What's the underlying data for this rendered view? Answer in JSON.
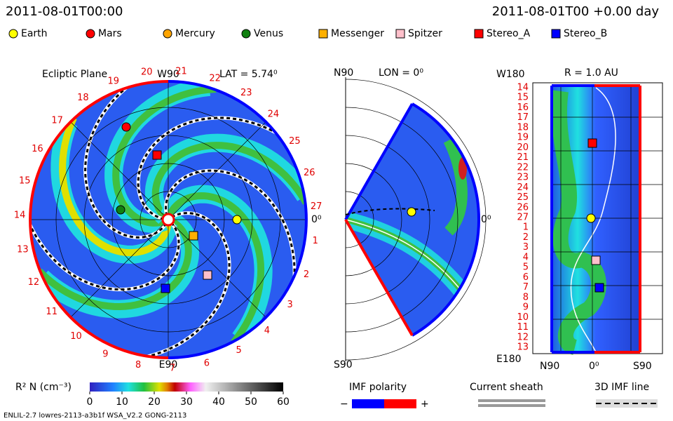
{
  "header": {
    "left": "2011-08-01T00:00",
    "right": "2011-08-01T00 +0.00 day"
  },
  "legend": [
    {
      "name": "Earth",
      "color": "#ffff00",
      "marker": "circle"
    },
    {
      "name": "Mars",
      "color": "#ff0000",
      "marker": "circle"
    },
    {
      "name": "Mercury",
      "color": "#ffa500",
      "marker": "circle"
    },
    {
      "name": "Venus",
      "color": "#108010",
      "marker": "circle"
    },
    {
      "name": "Messenger",
      "color": "#ffb000",
      "marker": "square"
    },
    {
      "name": "Spitzer",
      "color": "#ffc0cb",
      "marker": "square"
    },
    {
      "name": "Stereo_A",
      "color": "#ff0000",
      "marker": "square"
    },
    {
      "name": "Stereo_B",
      "color": "#0000ff",
      "marker": "square"
    }
  ],
  "ecliptic": {
    "title": "Ecliptic Plane",
    "top": "W90",
    "bottom": "E90",
    "right": "0⁰",
    "lat": "LAT = 5.74⁰",
    "rim_labels": [
      "1",
      "2",
      "3",
      "4",
      "5",
      "6",
      "7",
      "8",
      "9",
      "10",
      "11",
      "12",
      "13",
      "14",
      "15",
      "16",
      "17",
      "18",
      "19",
      "20",
      "21",
      "22",
      "23",
      "24",
      "25",
      "26",
      "27"
    ]
  },
  "meridional": {
    "top": "N90",
    "lon": "LON = 0⁰",
    "right": "0⁰",
    "bottom": "S90"
  },
  "radial": {
    "top": "W180",
    "r": "R = 1.0 AU",
    "bottom": "E180",
    "x_left": "N90",
    "x_mid": "0⁰",
    "x_right": "S90",
    "row_labels": [
      "14",
      "15",
      "16",
      "17",
      "18",
      "19",
      "20",
      "21",
      "22",
      "23",
      "24",
      "25",
      "26",
      "27",
      "1",
      "2",
      "3",
      "4",
      "5",
      "6",
      "7",
      "8",
      "9",
      "10",
      "11",
      "12",
      "13"
    ]
  },
  "colorbar": {
    "label": "R² N (cm⁻³)",
    "ticks": [
      0,
      10,
      20,
      30,
      40,
      50,
      60
    ]
  },
  "imf": {
    "title": "IMF polarity",
    "minus": "−",
    "plus": "+"
  },
  "sheath": {
    "title": "Current sheath"
  },
  "imf_line": {
    "title": "3D IMF line"
  },
  "footer": "ENLIL-2.7 lowres-2113-a3b1f WSA_V2.2 GONG-2113"
}
